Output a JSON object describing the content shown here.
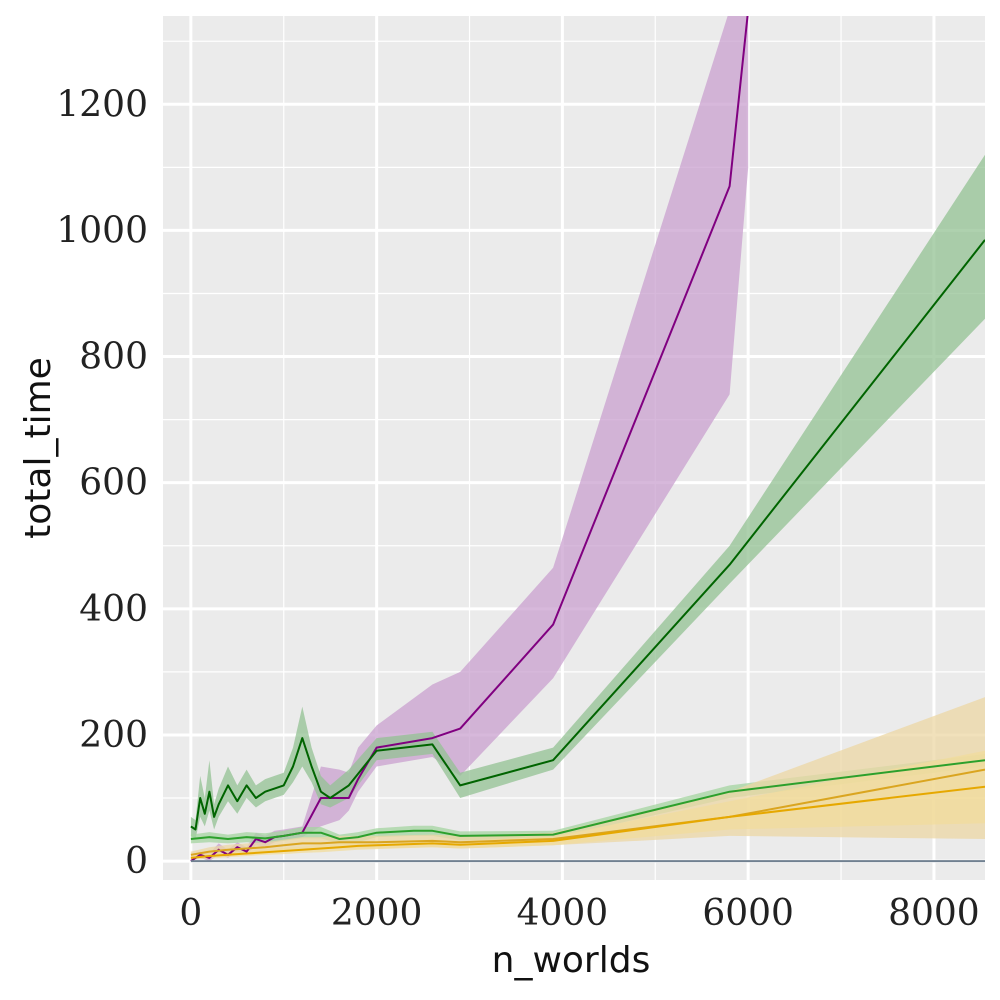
{
  "chart_data": {
    "type": "line",
    "title": "",
    "xlabel": "n_worlds",
    "ylabel": "total_time",
    "xlim": [
      -300,
      8550
    ],
    "ylim": [
      -30,
      1340
    ],
    "xticks": [
      0,
      2000,
      4000,
      6000,
      8000
    ],
    "xtick_labels": [
      "0",
      "2000",
      "4000",
      "6000",
      "8000"
    ],
    "yticks": [
      0,
      200,
      400,
      600,
      800,
      1000,
      1200
    ],
    "ytick_labels": [
      "0",
      "200",
      "400",
      "600",
      "800",
      "1000",
      "1200"
    ],
    "grid": true,
    "background": "#ebebeb",
    "grid_color": "#ffffff",
    "series": [
      {
        "color": "#800080",
        "band_color": "#c9a0cf",
        "x": [
          0,
          100,
          200,
          300,
          400,
          500,
          600,
          700,
          800,
          900,
          1000,
          1200,
          1400,
          1600,
          1700,
          1800,
          2000,
          2600,
          2900,
          3900,
          5800,
          6000
        ],
        "y": [
          0,
          10,
          5,
          18,
          10,
          22,
          15,
          35,
          30,
          38,
          40,
          45,
          100,
          100,
          100,
          130,
          180,
          195,
          210,
          375,
          1070,
          1350
        ],
        "lower": [
          0,
          5,
          0,
          10,
          5,
          15,
          10,
          25,
          22,
          30,
          33,
          38,
          55,
          65,
          80,
          110,
          150,
          165,
          135,
          290,
          740,
          1100
        ],
        "upper": [
          5,
          15,
          12,
          28,
          18,
          30,
          22,
          45,
          40,
          48,
          50,
          55,
          150,
          145,
          140,
          180,
          215,
          280,
          300,
          465,
          1350,
          1350
        ]
      },
      {
        "color": "#006400",
        "band_color": "#93c293",
        "x": [
          0,
          50,
          100,
          150,
          200,
          250,
          300,
          400,
          500,
          600,
          700,
          800,
          900,
          1000,
          1100,
          1200,
          1300,
          1400,
          1500,
          1700,
          2000,
          2600,
          2900,
          3900,
          5800,
          8550
        ],
        "y": [
          55,
          50,
          100,
          75,
          110,
          70,
          90,
          120,
          95,
          120,
          100,
          110,
          115,
          120,
          150,
          195,
          150,
          110,
          100,
          120,
          175,
          185,
          120,
          160,
          470,
          985
        ],
        "lower": [
          40,
          35,
          70,
          55,
          80,
          50,
          70,
          95,
          75,
          100,
          85,
          95,
          100,
          105,
          125,
          150,
          125,
          90,
          85,
          100,
          160,
          170,
          100,
          145,
          440,
          860
        ],
        "upper": [
          70,
          65,
          135,
          100,
          160,
          90,
          115,
          150,
          120,
          145,
          120,
          130,
          135,
          140,
          180,
          245,
          180,
          135,
          120,
          145,
          195,
          205,
          140,
          180,
          500,
          1120
        ]
      },
      {
        "color": "#2ca02c",
        "band_color": "#a4d4a0",
        "x": [
          0,
          200,
          400,
          600,
          800,
          1000,
          1200,
          1400,
          1600,
          1800,
          2000,
          2400,
          2600,
          2900,
          3900,
          5800,
          8550
        ],
        "y": [
          35,
          38,
          35,
          38,
          36,
          40,
          45,
          45,
          35,
          38,
          45,
          48,
          48,
          40,
          42,
          110,
          160
        ],
        "lower": [
          28,
          30,
          28,
          30,
          28,
          32,
          36,
          36,
          28,
          30,
          38,
          40,
          40,
          33,
          36,
          100,
          150
        ],
        "upper": [
          42,
          46,
          42,
          46,
          44,
          48,
          54,
          54,
          42,
          46,
          52,
          56,
          56,
          47,
          48,
          120,
          170
        ]
      },
      {
        "color": "#daa520",
        "band_color": "#ecd7a4",
        "x": [
          0,
          200,
          400,
          600,
          800,
          1000,
          1200,
          1400,
          1600,
          1800,
          2000,
          2600,
          2900,
          3900,
          5800,
          8550
        ],
        "y": [
          10,
          15,
          18,
          20,
          22,
          25,
          28,
          28,
          30,
          30,
          30,
          32,
          30,
          35,
          70,
          145
        ],
        "lower": [
          5,
          8,
          10,
          12,
          14,
          16,
          18,
          18,
          20,
          20,
          20,
          22,
          20,
          25,
          40,
          35
        ],
        "upper": [
          15,
          22,
          26,
          28,
          30,
          34,
          38,
          38,
          40,
          40,
          40,
          42,
          40,
          45,
          110,
          260
        ]
      },
      {
        "color": "#e6a800",
        "band_color": "#f2dc9c",
        "x": [
          0,
          200,
          400,
          600,
          800,
          1000,
          1200,
          1400,
          1600,
          1800,
          2000,
          2600,
          2900,
          3900,
          5800,
          8550
        ],
        "y": [
          5,
          8,
          10,
          12,
          14,
          16,
          18,
          20,
          22,
          24,
          25,
          28,
          26,
          32,
          70,
          118
        ],
        "lower": [
          2,
          4,
          6,
          8,
          10,
          11,
          13,
          14,
          16,
          18,
          19,
          22,
          20,
          25,
          50,
          60
        ],
        "upper": [
          8,
          12,
          14,
          16,
          18,
          21,
          23,
          26,
          28,
          30,
          31,
          34,
          32,
          39,
          95,
          175
        ]
      },
      {
        "color": "#708090",
        "band_color": "#c0c8d0",
        "x": [
          0,
          8550
        ],
        "y": [
          0,
          0
        ],
        "lower": [
          0,
          0
        ],
        "upper": [
          0,
          0
        ]
      }
    ]
  }
}
